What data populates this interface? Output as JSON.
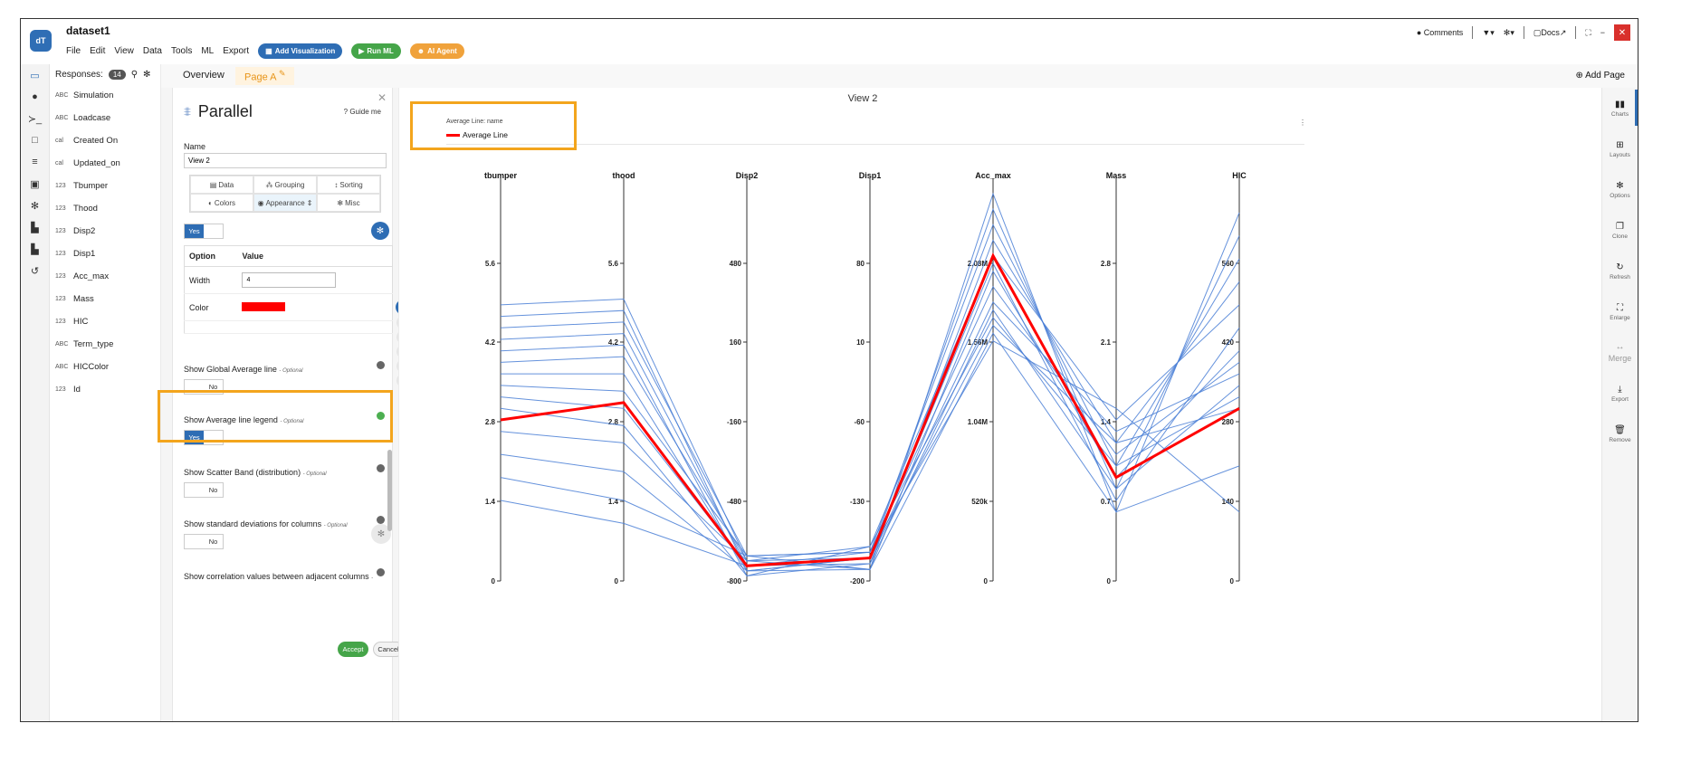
{
  "app": {
    "title": "dataset1",
    "logo_text": "dT",
    "menu": [
      "File",
      "Edit",
      "View",
      "Data",
      "Tools",
      "ML",
      "Export"
    ],
    "buttons": {
      "add_visualization": "Add Visualization",
      "run_ml": "Run ML",
      "ai_agent": "AI Agent"
    },
    "topright": {
      "comments": "Comments",
      "docs": "Docs"
    }
  },
  "left_panel": {
    "responses_label": "Responses:",
    "responses_count": "14",
    "variables": [
      {
        "type": "ABC",
        "name": "Simulation"
      },
      {
        "type": "ABC",
        "name": "Loadcase"
      },
      {
        "type": "cal",
        "name": "Created On"
      },
      {
        "type": "cal",
        "name": "Updated_on"
      },
      {
        "type": "123",
        "name": "Tbumper"
      },
      {
        "type": "123",
        "name": "Thood"
      },
      {
        "type": "123",
        "name": "Disp2"
      },
      {
        "type": "123",
        "name": "Disp1"
      },
      {
        "type": "123",
        "name": "Acc_max"
      },
      {
        "type": "123",
        "name": "Mass"
      },
      {
        "type": "123",
        "name": "HIC"
      },
      {
        "type": "ABC",
        "name": "Term_type"
      },
      {
        "type": "ABC",
        "name": "HICColor"
      },
      {
        "type": "123",
        "name": "Id"
      }
    ]
  },
  "tabs": {
    "overview": "Overview",
    "page_a": "Page A",
    "add_page": "Add Page"
  },
  "settings": {
    "title": "Parallel",
    "guide_me": "Guide me",
    "name_label": "Name",
    "name_value": "View 2",
    "tab_grid": [
      "Data",
      "Grouping",
      "Sorting",
      "Colors",
      "Appearance",
      "Misc"
    ],
    "avg_toggle": {
      "yes": "Yes",
      "no": ""
    },
    "table_headers": {
      "option": "Option",
      "value": "Value"
    },
    "rows": {
      "width_label": "Width",
      "width_value": "4",
      "color_label": "Color"
    },
    "options": [
      {
        "label": "Show Global Average line",
        "optional": "- Optional",
        "toggle": "No"
      },
      {
        "label": "Show Average line legend",
        "optional": "- Optional",
        "toggle": "Yes"
      },
      {
        "label": "Show Scatter Band (distribution)",
        "optional": "- Optional",
        "toggle": "No"
      },
      {
        "label": "Show standard deviations for columns",
        "optional": "- Optional",
        "toggle": "No"
      },
      {
        "label": "Show correlation values between adjacent columns",
        "optional": "-",
        "toggle": ""
      }
    ],
    "accept": "Accept",
    "cancel": "Cancel"
  },
  "chart": {
    "title": "View 2",
    "legend_title": "Average Line: name",
    "legend_label": "Average Line",
    "average_color": "#ff0000",
    "line_color": "#4a7fd6"
  },
  "chart_data": {
    "type": "parallel-coordinates",
    "title": "View 2",
    "axes": [
      {
        "name": "tbumper",
        "ticks": [
          "0",
          "1.4",
          "2.8",
          "4.2",
          "5.6"
        ],
        "min": 0,
        "max": 7
      },
      {
        "name": "thood",
        "ticks": [
          "0",
          "1.4",
          "2.8",
          "4.2",
          "5.6"
        ],
        "min": 0,
        "max": 7
      },
      {
        "name": "Disp2",
        "ticks": [
          "-800",
          "-480",
          "-160",
          "160",
          "480"
        ],
        "min": -800,
        "max": 800
      },
      {
        "name": "Disp1",
        "ticks": [
          "-200",
          "-130",
          "-60",
          "10",
          "80"
        ],
        "min": -200,
        "max": 150
      },
      {
        "name": "Acc_max",
        "ticks": [
          "0",
          "520k",
          "1.04M",
          "1.56M",
          "2.08M"
        ],
        "min": 0,
        "max": 2600000
      },
      {
        "name": "Mass",
        "ticks": [
          "0",
          "0.7",
          "1.4",
          "2.1",
          "2.8"
        ],
        "min": 0,
        "max": 3.5
      },
      {
        "name": "HIC",
        "ticks": [
          "0",
          "140",
          "280",
          "420",
          "560"
        ],
        "min": 0,
        "max": 700
      }
    ],
    "average_line": {
      "name": "Average Line",
      "values": [
        2.8,
        3.1,
        -740,
        -180,
        2100000,
        0.9,
        300
      ]
    },
    "series": [
      {
        "values": [
          4.8,
          4.9,
          -720,
          -190,
          2500000,
          0.6,
          640
        ]
      },
      {
        "values": [
          4.6,
          4.7,
          -760,
          -180,
          2400000,
          0.8,
          600
        ]
      },
      {
        "values": [
          4.4,
          4.5,
          -700,
          -175,
          2300000,
          1.0,
          560
        ]
      },
      {
        "values": [
          4.2,
          4.3,
          -740,
          -185,
          2200000,
          1.2,
          520
        ]
      },
      {
        "values": [
          4.0,
          4.1,
          -780,
          -170,
          2100000,
          1.4,
          480
        ]
      },
      {
        "values": [
          3.8,
          3.9,
          -720,
          -180,
          2050000,
          0.7,
          440
        ]
      },
      {
        "values": [
          3.6,
          3.6,
          -760,
          -190,
          2000000,
          0.9,
          400
        ]
      },
      {
        "values": [
          3.4,
          3.3,
          -700,
          -175,
          1900000,
          1.1,
          380
        ]
      },
      {
        "values": [
          3.2,
          3.0,
          -740,
          -180,
          1800000,
          1.3,
          360
        ]
      },
      {
        "values": [
          3.0,
          2.7,
          -780,
          -185,
          1750000,
          0.8,
          340
        ]
      },
      {
        "values": [
          2.6,
          2.4,
          -720,
          -170,
          1700000,
          1.0,
          320
        ]
      },
      {
        "values": [
          2.2,
          1.9,
          -760,
          -180,
          1650000,
          1.2,
          300
        ]
      },
      {
        "values": [
          1.8,
          1.4,
          -700,
          -190,
          1600000,
          0.6,
          200
        ]
      },
      {
        "values": [
          1.4,
          1.0,
          -740,
          -175,
          1550000,
          1.5,
          120
        ]
      }
    ]
  },
  "rightbar": [
    "Charts",
    "Layouts",
    "Options",
    "Clone",
    "Refresh",
    "Enlarge",
    "Merge",
    "Export",
    "Remove"
  ]
}
